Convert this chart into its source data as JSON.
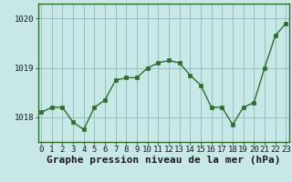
{
  "x": [
    0,
    1,
    2,
    3,
    4,
    5,
    6,
    7,
    8,
    9,
    10,
    11,
    12,
    13,
    14,
    15,
    16,
    17,
    18,
    19,
    20,
    21,
    22,
    23
  ],
  "y": [
    1018.1,
    1018.2,
    1018.2,
    1017.9,
    1017.75,
    1018.2,
    1018.35,
    1018.75,
    1018.8,
    1018.8,
    1019.0,
    1019.1,
    1019.15,
    1019.1,
    1018.85,
    1018.65,
    1018.2,
    1018.2,
    1017.85,
    1018.2,
    1018.3,
    1019.0,
    1019.65,
    1019.9
  ],
  "line_color": "#2d6e2d",
  "marker_color": "#2d6e2d",
  "bg_color": "#c8e8e8",
  "plot_bg_color": "#c8e8e8",
  "grid_color": "#90b8b8",
  "xlabel": "Graphe pression niveau de la mer (hPa)",
  "xlabel_fontsize": 8,
  "ylim_min": 1017.5,
  "ylim_max": 1020.3,
  "ytick_values": [
    1018,
    1019,
    1020
  ],
  "xtick_values": [
    0,
    1,
    2,
    3,
    4,
    5,
    6,
    7,
    8,
    9,
    10,
    11,
    12,
    13,
    14,
    15,
    16,
    17,
    18,
    19,
    20,
    21,
    22,
    23
  ],
  "tick_label_fontsize": 6.5,
  "marker_size": 3,
  "spine_color": "#2d6e2d",
  "tick_color": "#2d6e2d"
}
